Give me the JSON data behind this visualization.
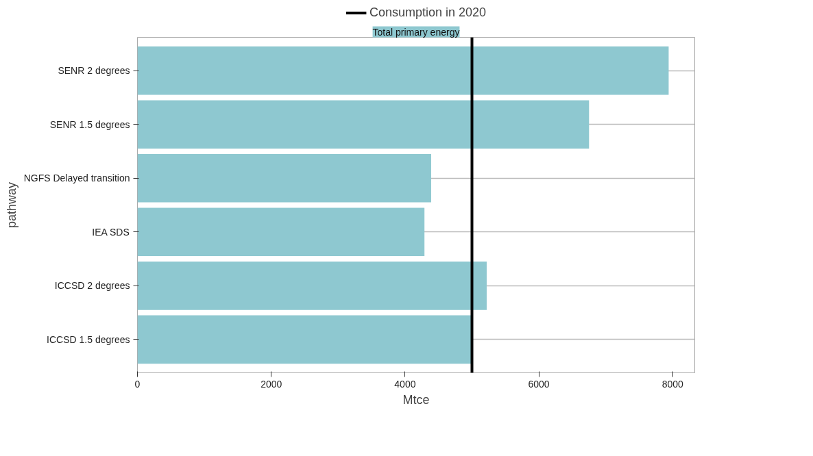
{
  "chart_data": {
    "type": "bar",
    "orientation": "horizontal",
    "subtitle": "Total primary energy",
    "xlabel": "Mtce",
    "ylabel": "pathway",
    "categories": [
      "SENR 2 degrees",
      "SENR 1.5 degrees",
      "NGFS Delayed transition",
      "IEA SDS",
      "ICCSD 2 degrees",
      "ICCSD 1.5 degrees"
    ],
    "values": [
      7940,
      6750,
      4390,
      4290,
      5220,
      5000
    ],
    "color": "#8ec8d0",
    "xlim": [
      0,
      8330
    ],
    "xticks": [
      0,
      2000,
      4000,
      6000,
      8000
    ],
    "ref_lines": [
      {
        "axis": "x",
        "value": 5000,
        "label": "Consumption in 2020",
        "color": "#000000"
      }
    ],
    "grid": "y",
    "legend": "top"
  }
}
